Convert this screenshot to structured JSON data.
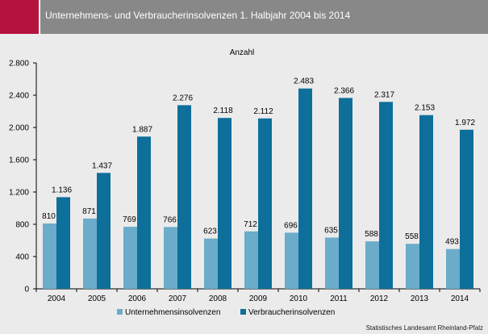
{
  "header": {
    "title": "Unternehmens- und Verbraucherinsolvenzen 1. Halbjahr 2004 bis 2014"
  },
  "source": "Statistisches Landesamt Rheinland-Pfalz",
  "colors": {
    "accent": "#b5123e",
    "header_bg": "#888888",
    "background": "#ebebeb",
    "series_light": "#6aacc9",
    "series_dark": "#0e6f9a"
  },
  "chart_data": {
    "type": "bar",
    "ylabel": "Anzahl",
    "ylim": [
      0,
      2800
    ],
    "yticks": [
      0,
      400,
      800,
      1200,
      1600,
      2000,
      2400,
      2800
    ],
    "ytick_labels": [
      "0",
      "400",
      "800",
      "1.200",
      "1.600",
      "2.000",
      "2.400",
      "2.800"
    ],
    "categories": [
      "2004",
      "2005",
      "2006",
      "2007",
      "2008",
      "2009",
      "2010",
      "2011",
      "2012",
      "2013",
      "2014"
    ],
    "series": [
      {
        "name": "Unternehmensinsolvenzen",
        "values": [
          810,
          871,
          769,
          766,
          623,
          712,
          696,
          635,
          588,
          558,
          493
        ],
        "labels": [
          "810",
          "871",
          "769",
          "766",
          "623",
          "712",
          "696",
          "635",
          "588",
          "558",
          "493"
        ]
      },
      {
        "name": "Verbraucherinsolvenzen",
        "values": [
          1136,
          1437,
          1887,
          2276,
          2118,
          2112,
          2483,
          2366,
          2317,
          2153,
          1972
        ],
        "labels": [
          "1.136",
          "1.437",
          "1.887",
          "2.276",
          "2.118",
          "2.112",
          "2.483",
          "2.366",
          "2.317",
          "2.153",
          "1.972"
        ]
      }
    ],
    "grid": false,
    "legend_position": "bottom"
  }
}
